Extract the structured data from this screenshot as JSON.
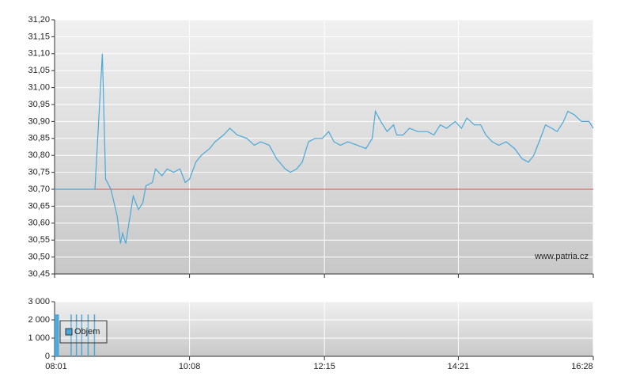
{
  "chart_data": [
    {
      "type": "line",
      "x": [
        "08:01",
        "08:39",
        "08:46",
        "08:49",
        "08:54",
        "09:00",
        "09:03",
        "09:05",
        "09:08",
        "09:11",
        "09:15",
        "09:20",
        "09:24",
        "09:27",
        "09:33",
        "09:36",
        "09:42",
        "09:47",
        "09:53",
        "09:59",
        "10:04",
        "10:08",
        "10:14",
        "10:19",
        "10:27",
        "10:32",
        "10:40",
        "10:46",
        "10:53",
        "11:02",
        "11:09",
        "11:15",
        "11:23",
        "11:30",
        "11:38",
        "11:43",
        "11:49",
        "11:54",
        "12:00",
        "12:06",
        "12:13",
        "12:19",
        "12:24",
        "12:30",
        "12:37",
        "12:46",
        "12:54",
        "13:00",
        "13:03",
        "13:08",
        "13:14",
        "13:20",
        "13:23",
        "13:29",
        "13:35",
        "13:43",
        "13:52",
        "13:58",
        "14:04",
        "14:10",
        "14:18",
        "14:24",
        "14:29",
        "14:36",
        "14:42",
        "14:47",
        "14:53",
        "14:59",
        "15:06",
        "15:14",
        "15:21",
        "15:27",
        "15:32",
        "15:37",
        "15:43",
        "15:49",
        "15:54",
        "16:00",
        "16:04",
        "16:10",
        "16:17",
        "16:24",
        "16:28"
      ],
      "values": [
        30.7,
        30.7,
        31.1,
        30.73,
        30.7,
        30.62,
        30.54,
        30.57,
        30.54,
        30.6,
        30.68,
        30.64,
        30.66,
        30.71,
        30.72,
        30.76,
        30.74,
        30.76,
        30.75,
        30.76,
        30.72,
        30.73,
        30.78,
        30.8,
        30.82,
        30.84,
        30.86,
        30.88,
        30.86,
        30.85,
        30.83,
        30.84,
        30.83,
        30.79,
        30.76,
        30.75,
        30.76,
        30.78,
        30.84,
        30.85,
        30.85,
        30.87,
        30.84,
        30.83,
        30.84,
        30.83,
        30.82,
        30.85,
        30.93,
        30.9,
        30.87,
        30.89,
        30.86,
        30.86,
        30.88,
        30.87,
        30.87,
        30.86,
        30.89,
        30.88,
        30.9,
        30.88,
        30.91,
        30.89,
        30.89,
        30.86,
        30.84,
        30.83,
        30.84,
        30.82,
        30.79,
        30.78,
        30.8,
        30.84,
        30.89,
        30.88,
        30.87,
        30.9,
        30.93,
        30.92,
        30.9,
        30.9,
        30.88
      ],
      "color": "#4aa8d8",
      "reference_line": {
        "value": 30.7,
        "color": "#e05050"
      },
      "xlim": [
        "08:01",
        "16:28"
      ],
      "xticks": [
        "08:01",
        "10:08",
        "12:15",
        "14:21",
        "16:28"
      ],
      "ylim": [
        30.45,
        31.2
      ],
      "yticks": [
        {
          "value": 30.45,
          "label": "30,45"
        },
        {
          "value": 30.5,
          "label": "30,50"
        },
        {
          "value": 30.55,
          "label": "30,55"
        },
        {
          "value": 30.6,
          "label": "30,60"
        },
        {
          "value": 30.65,
          "label": "30,65"
        },
        {
          "value": 30.7,
          "label": "30,70"
        },
        {
          "value": 30.75,
          "label": "30,75"
        },
        {
          "value": 30.8,
          "label": "30,80"
        },
        {
          "value": 30.85,
          "label": "30,85"
        },
        {
          "value": 30.9,
          "label": "30,90"
        },
        {
          "value": 30.95,
          "label": "30,95"
        },
        {
          "value": 31.0,
          "label": "31,00"
        },
        {
          "value": 31.05,
          "label": "31,05"
        },
        {
          "value": 31.1,
          "label": "31,10"
        },
        {
          "value": 31.15,
          "label": "31,15"
        },
        {
          "value": 31.2,
          "label": "31,20"
        }
      ],
      "grid": true,
      "annotation": "www.patria.cz"
    },
    {
      "type": "bar",
      "x": [
        "08:01",
        "08:02",
        "08:03",
        "08:04",
        "08:16",
        "08:21",
        "08:26",
        "08:32",
        "08:38"
      ],
      "series": [
        {
          "name": "Objem",
          "color": "#4aa8d8",
          "values": [
            2300,
            2300,
            2300,
            2300,
            2300,
            2300,
            2300,
            2300,
            2300
          ]
        }
      ],
      "xlim": [
        "08:01",
        "16:28"
      ],
      "xticks": [
        "08:01",
        "10:08",
        "12:15",
        "14:21",
        "16:28"
      ],
      "ylim": [
        0,
        3000
      ],
      "yticks": [
        0,
        {
          "value": 1000,
          "label": "1 000"
        },
        {
          "value": 2000,
          "label": "2 000"
        },
        {
          "value": 3000,
          "label": "3 000"
        }
      ],
      "grid": true,
      "legend": "upper left"
    }
  ]
}
